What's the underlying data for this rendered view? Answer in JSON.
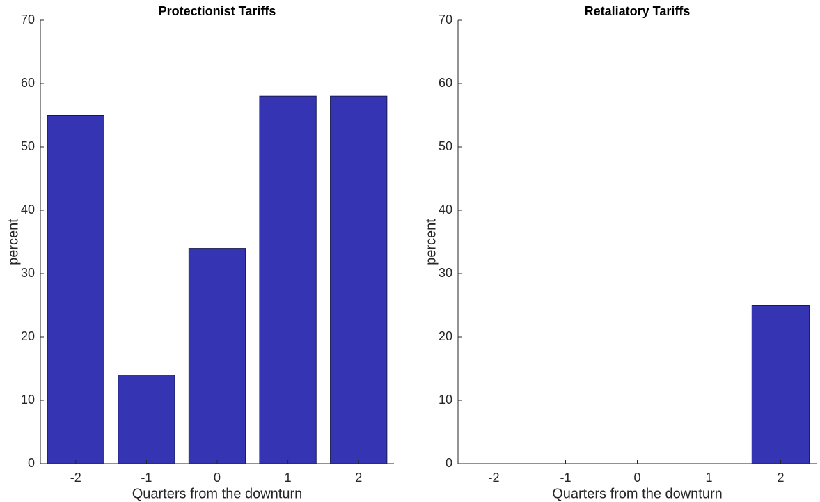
{
  "chart_data": [
    {
      "type": "bar",
      "title": "Protectionist Tariffs",
      "xlabel": "Quarters from the downturn",
      "ylabel": "percent",
      "categories": [
        "-2",
        "-1",
        "0",
        "1",
        "2"
      ],
      "values": [
        55,
        14,
        34,
        58,
        58
      ],
      "color": "#3535b3",
      "ylim": [
        0,
        70
      ],
      "yticks": [
        0,
        10,
        20,
        30,
        40,
        50,
        60,
        70
      ]
    },
    {
      "type": "bar",
      "title": "Retaliatory Tariffs",
      "xlabel": "Quarters from the downturn",
      "ylabel": "percent",
      "categories": [
        "-2",
        "-1",
        "0",
        "1",
        "2"
      ],
      "values": [
        0,
        0,
        0,
        0,
        25
      ],
      "color": "#3535b3",
      "ylim": [
        0,
        70
      ],
      "yticks": [
        0,
        10,
        20,
        30,
        40,
        50,
        60,
        70
      ]
    }
  ]
}
